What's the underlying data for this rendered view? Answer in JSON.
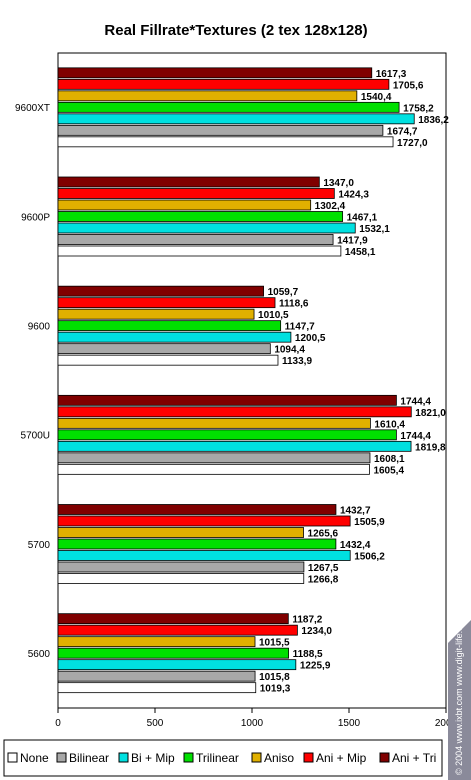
{
  "chart_data": {
    "type": "bar",
    "orientation": "horizontal",
    "title": "Real Fillrate*Textures (2 tex 128x128)",
    "categories": [
      "9600XT",
      "9600P",
      "9600",
      "5700U",
      "5700",
      "5600"
    ],
    "series": [
      {
        "name": "Ani + Tri",
        "color": "#800000",
        "values": [
          "1617,3",
          "1347,0",
          "1059,7",
          "1744,4",
          "1432,7",
          "1187,2"
        ]
      },
      {
        "name": "Ani + Mip",
        "color": "#ff0000",
        "values": [
          "1705,6",
          "1424,3",
          "1118,6",
          "1821,0",
          "1505,9",
          "1234,0"
        ]
      },
      {
        "name": "Aniso",
        "color": "#e0b000",
        "values": [
          "1540,4",
          "1302,4",
          "1010,5",
          "1610,4",
          "1265,6",
          "1015,5"
        ]
      },
      {
        "name": "Trilinear",
        "color": "#00e000",
        "values": [
          "1758,2",
          "1467,1",
          "1147,7",
          "1744,4",
          "1432,4",
          "1188,5"
        ]
      },
      {
        "name": "Bi + Mip",
        "color": "#00e0e0",
        "values": [
          "1836,2",
          "1532,1",
          "1200,5",
          "1819,8",
          "1506,2",
          "1225,9"
        ]
      },
      {
        "name": "Bilinear",
        "color": "#a8a8a8",
        "values": [
          "1674,7",
          "1417,9",
          "1094,4",
          "1608,1",
          "1267,5",
          "1015,8"
        ]
      },
      {
        "name": "None",
        "color": "#ffffff",
        "values": [
          "1727,0",
          "1458,1",
          "1133,9",
          "1605,4",
          "1266,8",
          "1019,3"
        ]
      }
    ],
    "legend_order": [
      "None",
      "Bilinear",
      "Bi + Mip",
      "Trilinear",
      "Aniso",
      "Ani + Mip",
      "Ani + Tri"
    ],
    "xlim": [
      0,
      2000
    ],
    "xticks": [
      0,
      500,
      1000,
      1500,
      2000
    ],
    "grid": false,
    "legend_placement": "bottom"
  },
  "watermark": "© 2004 www.ixbt.com www.digit-life.com",
  "colors": {
    "frame": "#000000",
    "watermark_bg": "#8a8a9a"
  }
}
